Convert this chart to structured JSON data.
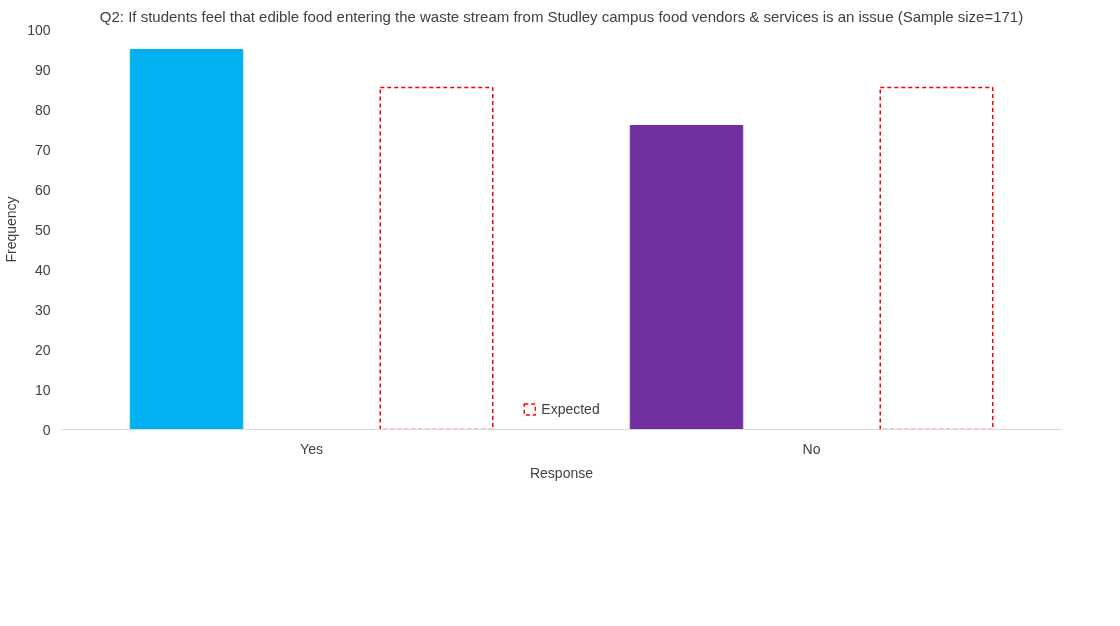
{
  "chart_data": {
    "type": "bar",
    "title": "Q2: If students feel that edible food entering the waste stream from Studley campus food vendors & services is an issue (Sample size=171)",
    "xlabel": "Response",
    "ylabel": "Frequency",
    "categories": [
      "Yes",
      "No"
    ],
    "series": [
      {
        "colors": [
          "#00b0f0",
          "#7030a0"
        ],
        "values": [
          95,
          76
        ]
      },
      {
        "name": "Expected",
        "color": "#ff0000",
        "line_style": "dashed",
        "values": [
          85.5,
          85.5
        ]
      }
    ],
    "ylim": [
      0,
      100
    ],
    "yticks": [
      0,
      10,
      20,
      30,
      40,
      50,
      60,
      70,
      80,
      90,
      100
    ],
    "grid": false,
    "legend": "bottom"
  }
}
